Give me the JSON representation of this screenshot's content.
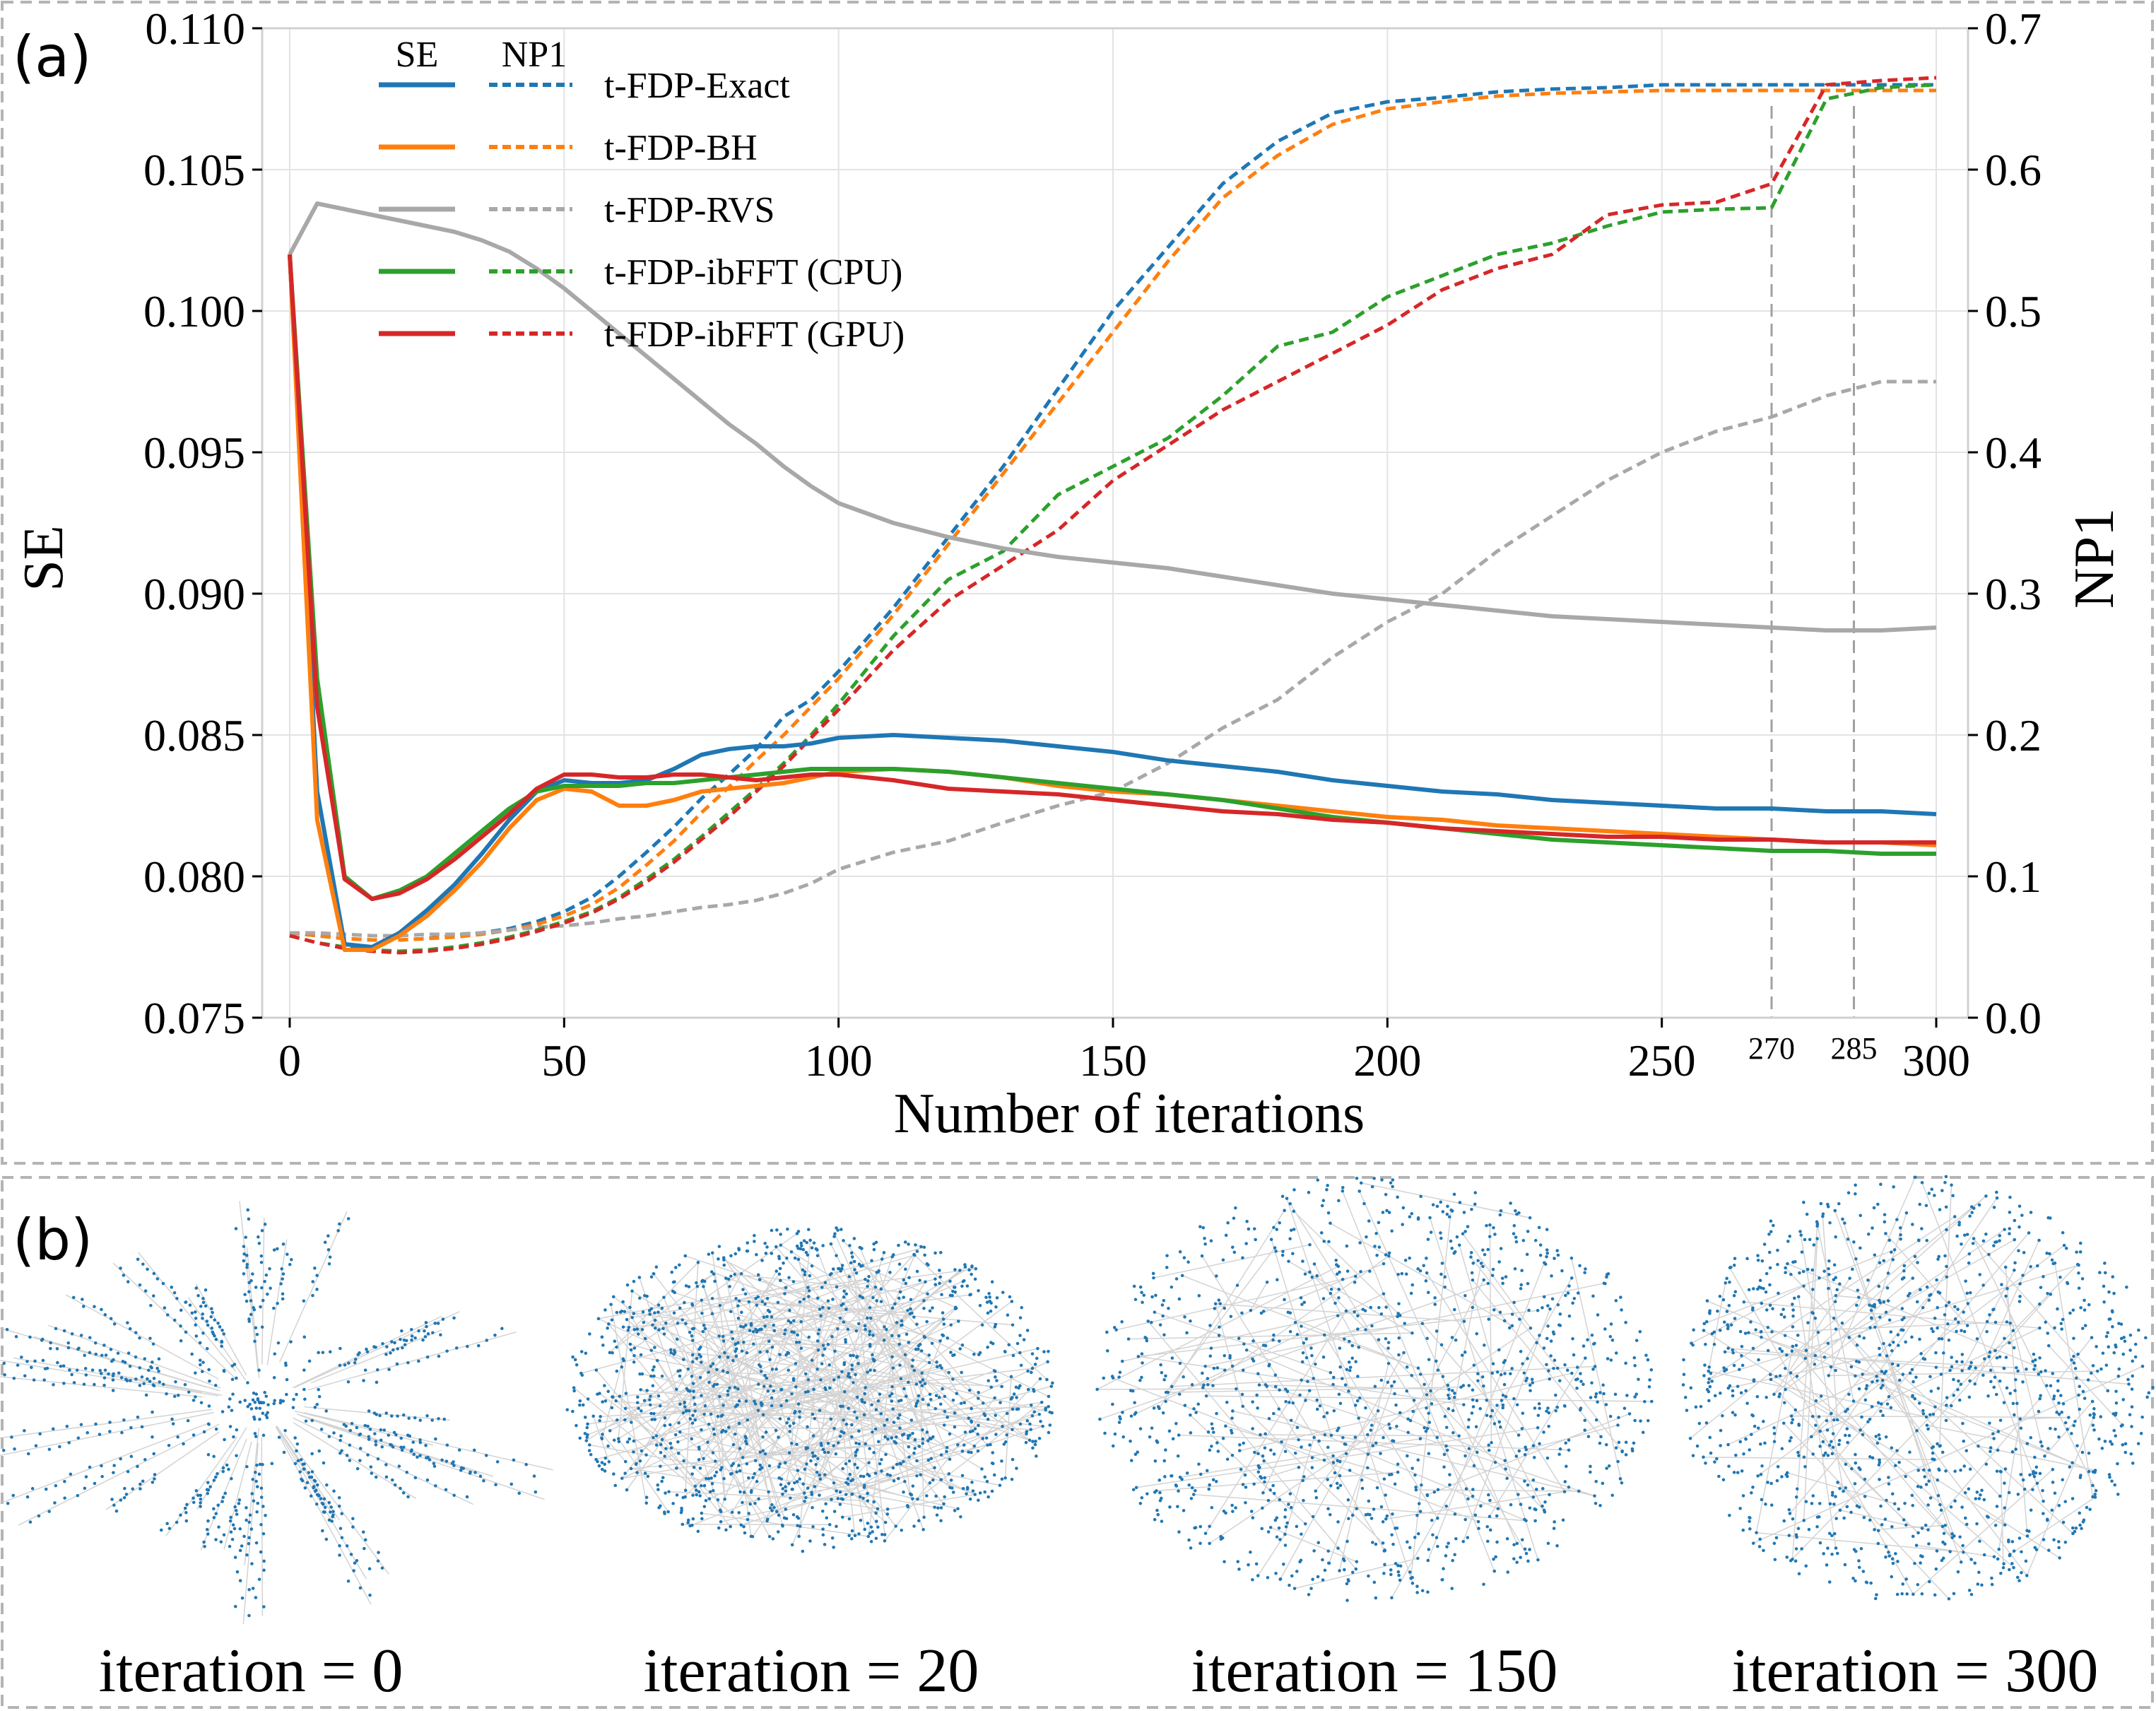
{
  "panel_a": {
    "label": "(a)"
  },
  "panel_b": {
    "label": "(b)",
    "captions": [
      "iteration = 0",
      "iteration = 20",
      "iteration = 150",
      "iteration = 300"
    ]
  },
  "colors": {
    "exact": "#1f77b4",
    "bh": "#ff7f0e",
    "rvs": "#a8a8a8",
    "ibfft_cpu": "#2ca02c",
    "ibfft_gpu": "#d62728",
    "node": "#1f77b4",
    "edge": "#c8c8c8",
    "frame": "#b4b4b4"
  },
  "chart_data": {
    "type": "line",
    "xlabel": "Number of iterations",
    "ylabel": "SE",
    "y2label": "NP1",
    "xlim": [
      0,
      300
    ],
    "ylim": [
      0.075,
      0.11
    ],
    "y2lim": [
      0.0,
      0.7
    ],
    "x_ticks": [
      0,
      50,
      100,
      150,
      200,
      250,
      300
    ],
    "x_tick_labels": [
      "0",
      "50",
      "100",
      "150",
      "200",
      "250",
      "300"
    ],
    "y_ticks": [
      0.075,
      0.08,
      0.085,
      0.09,
      0.095,
      0.1,
      0.105,
      0.11
    ],
    "y_tick_labels": [
      "0.075",
      "0.080",
      "0.085",
      "0.090",
      "0.095",
      "0.100",
      "0.105",
      "0.110"
    ],
    "y2_ticks": [
      0.0,
      0.1,
      0.2,
      0.3,
      0.4,
      0.5,
      0.6,
      0.7
    ],
    "y2_tick_labels": [
      "0.0",
      "0.1",
      "0.2",
      "0.3",
      "0.4",
      "0.5",
      "0.6",
      "0.7"
    ],
    "vlines": [
      {
        "x": 270,
        "label": "270"
      },
      {
        "x": 285,
        "label": "285"
      }
    ],
    "grid": true,
    "legend": {
      "placement": "top-left",
      "header_se": "SE",
      "header_np1": "NP1",
      "entries": [
        "t-FDP-Exact",
        "t-FDP-BH",
        "t-FDP-RVS",
        "t-FDP-ibFFT (CPU)",
        "t-FDP-ibFFT (GPU)"
      ]
    },
    "x": [
      0,
      5,
      10,
      15,
      20,
      25,
      30,
      35,
      40,
      45,
      50,
      55,
      60,
      65,
      70,
      75,
      80,
      85,
      90,
      95,
      100,
      110,
      120,
      130,
      140,
      150,
      160,
      170,
      180,
      190,
      200,
      210,
      220,
      230,
      240,
      250,
      260,
      270,
      280,
      290,
      300
    ],
    "series": [
      {
        "name": "t-FDP-Exact",
        "metric": "SE",
        "color": "#1f77b4",
        "values": [
          0.102,
          0.083,
          0.0776,
          0.0775,
          0.078,
          0.0788,
          0.0797,
          0.0808,
          0.082,
          0.083,
          0.0834,
          0.0833,
          0.0833,
          0.0834,
          0.0838,
          0.0843,
          0.0845,
          0.0846,
          0.0846,
          0.0847,
          0.0849,
          0.085,
          0.0849,
          0.0848,
          0.0846,
          0.0844,
          0.0841,
          0.0839,
          0.0837,
          0.0834,
          0.0832,
          0.083,
          0.0829,
          0.0827,
          0.0826,
          0.0825,
          0.0824,
          0.0824,
          0.0823,
          0.0823,
          0.0822
        ]
      },
      {
        "name": "t-FDP-BH",
        "metric": "SE",
        "color": "#ff7f0e",
        "values": [
          0.102,
          0.082,
          0.0774,
          0.0774,
          0.0779,
          0.0786,
          0.0795,
          0.0805,
          0.0817,
          0.0827,
          0.0831,
          0.083,
          0.0825,
          0.0825,
          0.0827,
          0.083,
          0.0831,
          0.0832,
          0.0833,
          0.0835,
          0.0837,
          0.0838,
          0.0837,
          0.0835,
          0.0832,
          0.083,
          0.0829,
          0.0827,
          0.0825,
          0.0823,
          0.0821,
          0.082,
          0.0818,
          0.0817,
          0.0816,
          0.0815,
          0.0814,
          0.0813,
          0.0812,
          0.0812,
          0.0811
        ]
      },
      {
        "name": "t-FDP-RVS",
        "metric": "SE",
        "color": "#a8a8a8",
        "values": [
          0.102,
          0.1038,
          0.1036,
          0.1034,
          0.1032,
          0.103,
          0.1028,
          0.1025,
          0.1021,
          0.1015,
          0.1008,
          0.1,
          0.0992,
          0.0984,
          0.0976,
          0.0968,
          0.096,
          0.0953,
          0.0945,
          0.0938,
          0.0932,
          0.0925,
          0.092,
          0.0916,
          0.0913,
          0.0911,
          0.0909,
          0.0906,
          0.0903,
          0.09,
          0.0898,
          0.0896,
          0.0894,
          0.0892,
          0.0891,
          0.089,
          0.0889,
          0.0888,
          0.0887,
          0.0887,
          0.0888
        ]
      },
      {
        "name": "t-FDP-ibFFT (CPU)",
        "metric": "SE",
        "color": "#2ca02c",
        "values": [
          0.102,
          0.087,
          0.08,
          0.0792,
          0.0795,
          0.08,
          0.0808,
          0.0816,
          0.0824,
          0.083,
          0.0832,
          0.0832,
          0.0832,
          0.0833,
          0.0833,
          0.0834,
          0.0835,
          0.0836,
          0.0837,
          0.0838,
          0.0838,
          0.0838,
          0.0837,
          0.0835,
          0.0833,
          0.0831,
          0.0829,
          0.0827,
          0.0824,
          0.0821,
          0.0819,
          0.0817,
          0.0815,
          0.0813,
          0.0812,
          0.0811,
          0.081,
          0.0809,
          0.0809,
          0.0808,
          0.0808
        ]
      },
      {
        "name": "t-FDP-ibFFT (GPU)",
        "metric": "SE",
        "color": "#d62728",
        "values": [
          0.102,
          0.086,
          0.0799,
          0.0792,
          0.0794,
          0.0799,
          0.0806,
          0.0814,
          0.0822,
          0.0831,
          0.0836,
          0.0836,
          0.0835,
          0.0835,
          0.0836,
          0.0836,
          0.0835,
          0.0834,
          0.0835,
          0.0836,
          0.0836,
          0.0834,
          0.0831,
          0.083,
          0.0829,
          0.0827,
          0.0825,
          0.0823,
          0.0822,
          0.082,
          0.0819,
          0.0817,
          0.0816,
          0.0815,
          0.0814,
          0.0814,
          0.0813,
          0.0813,
          0.0812,
          0.0812,
          0.0812
        ]
      },
      {
        "name": "t-FDP-Exact",
        "metric": "NP1",
        "color": "#1f77b4",
        "values": [
          0.06,
          0.058,
          0.056,
          0.055,
          0.055,
          0.056,
          0.058,
          0.06,
          0.063,
          0.068,
          0.075,
          0.085,
          0.1,
          0.117,
          0.135,
          0.155,
          0.172,
          0.19,
          0.213,
          0.225,
          0.245,
          0.29,
          0.34,
          0.39,
          0.445,
          0.5,
          0.545,
          0.59,
          0.62,
          0.64,
          0.648,
          0.651,
          0.655,
          0.657,
          0.658,
          0.66,
          0.66,
          0.66,
          0.66,
          0.66,
          0.66
        ]
      },
      {
        "name": "t-FDP-BH",
        "metric": "NP1",
        "color": "#ff7f0e",
        "values": [
          0.06,
          0.058,
          0.056,
          0.055,
          0.055,
          0.056,
          0.057,
          0.059,
          0.062,
          0.066,
          0.072,
          0.08,
          0.092,
          0.108,
          0.125,
          0.145,
          0.163,
          0.182,
          0.2,
          0.22,
          0.24,
          0.285,
          0.335,
          0.385,
          0.435,
          0.485,
          0.535,
          0.58,
          0.61,
          0.632,
          0.643,
          0.648,
          0.652,
          0.654,
          0.655,
          0.656,
          0.656,
          0.656,
          0.656,
          0.656,
          0.656
        ]
      },
      {
        "name": "t-FDP-RVS",
        "metric": "NP1",
        "color": "#a8a8a8",
        "values": [
          0.06,
          0.06,
          0.059,
          0.058,
          0.058,
          0.059,
          0.059,
          0.06,
          0.062,
          0.064,
          0.065,
          0.067,
          0.07,
          0.072,
          0.075,
          0.078,
          0.08,
          0.083,
          0.088,
          0.095,
          0.105,
          0.117,
          0.125,
          0.138,
          0.15,
          0.16,
          0.18,
          0.205,
          0.225,
          0.255,
          0.28,
          0.3,
          0.33,
          0.355,
          0.38,
          0.4,
          0.415,
          0.425,
          0.44,
          0.45,
          0.45
        ]
      },
      {
        "name": "t-FDP-ibFFT (CPU)",
        "metric": "NP1",
        "color": "#2ca02c",
        "values": [
          0.058,
          0.053,
          0.05,
          0.048,
          0.047,
          0.048,
          0.05,
          0.053,
          0.057,
          0.062,
          0.068,
          0.075,
          0.085,
          0.098,
          0.112,
          0.128,
          0.145,
          0.162,
          0.18,
          0.2,
          0.222,
          0.27,
          0.31,
          0.33,
          0.37,
          0.39,
          0.41,
          0.44,
          0.475,
          0.485,
          0.51,
          0.525,
          0.54,
          0.548,
          0.56,
          0.57,
          0.572,
          0.573,
          0.65,
          0.658,
          0.66
        ]
      },
      {
        "name": "t-FDP-ibFFT (GPU)",
        "metric": "NP1",
        "color": "#d62728",
        "values": [
          0.058,
          0.053,
          0.049,
          0.047,
          0.046,
          0.047,
          0.049,
          0.052,
          0.056,
          0.061,
          0.067,
          0.074,
          0.084,
          0.096,
          0.11,
          0.126,
          0.142,
          0.16,
          0.178,
          0.198,
          0.218,
          0.26,
          0.295,
          0.32,
          0.345,
          0.38,
          0.405,
          0.43,
          0.45,
          0.47,
          0.49,
          0.515,
          0.53,
          0.54,
          0.568,
          0.575,
          0.577,
          0.59,
          0.66,
          0.663,
          0.665
        ]
      }
    ]
  }
}
